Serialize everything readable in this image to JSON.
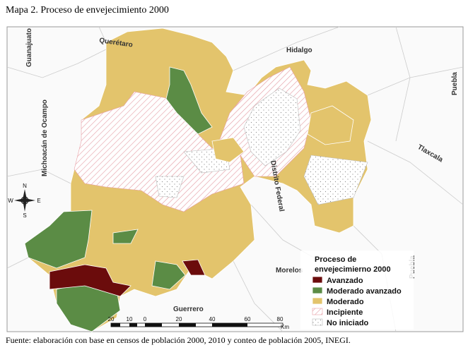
{
  "header": {
    "title": "Mapa 2. Proceso de envejecimiento 2000"
  },
  "map": {
    "neighbors": [
      "Guanajuato",
      "Querétaro",
      "Hidalgo",
      "Michoacán de Ocampo",
      "Distrito Federal",
      "Tlaxcala",
      "Puebla",
      "Puebla",
      "Morelos",
      "Guerrero"
    ],
    "compass": [
      "N",
      "W",
      "E",
      "S"
    ],
    "legend": {
      "title_lines": [
        "Proceso de",
        "envejecimierno 2000"
      ],
      "items": [
        "Avanzado",
        "Moderado avanzado",
        "Moderado",
        "Incipiente",
        "No iniciado"
      ]
    },
    "scale": {
      "labels": [
        "20",
        "10",
        "0",
        "20",
        "40",
        "60",
        "80"
      ],
      "unit": "Km"
    }
  },
  "footer": {
    "source": "Fuente: elaboración con base en censos de población 2000, 2010 y conteo de población 2005, INEGI."
  }
}
